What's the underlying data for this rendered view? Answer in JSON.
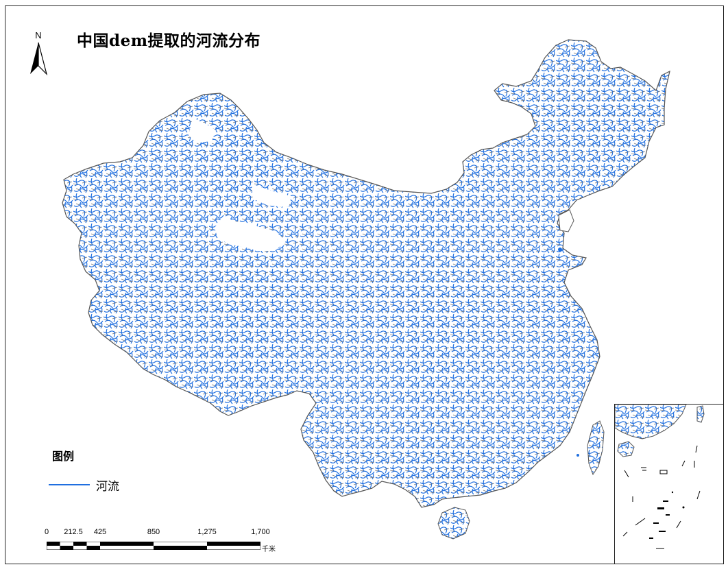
{
  "map": {
    "title": "中国dem提取的河流分布",
    "north_arrow": {
      "letter": "N",
      "icon": "north-arrow-icon"
    },
    "legend": {
      "title": "图例",
      "items": [
        {
          "label": "河流",
          "color": "#1f6fe0"
        }
      ]
    },
    "scale_bar": {
      "ticks": [
        "0",
        "212.5",
        "425",
        "850",
        "1,275",
        "1,700"
      ],
      "unit": "千米"
    },
    "colors": {
      "river": "#1f6fe0",
      "boundary": "#666666",
      "land": "#ffffff"
    }
  }
}
